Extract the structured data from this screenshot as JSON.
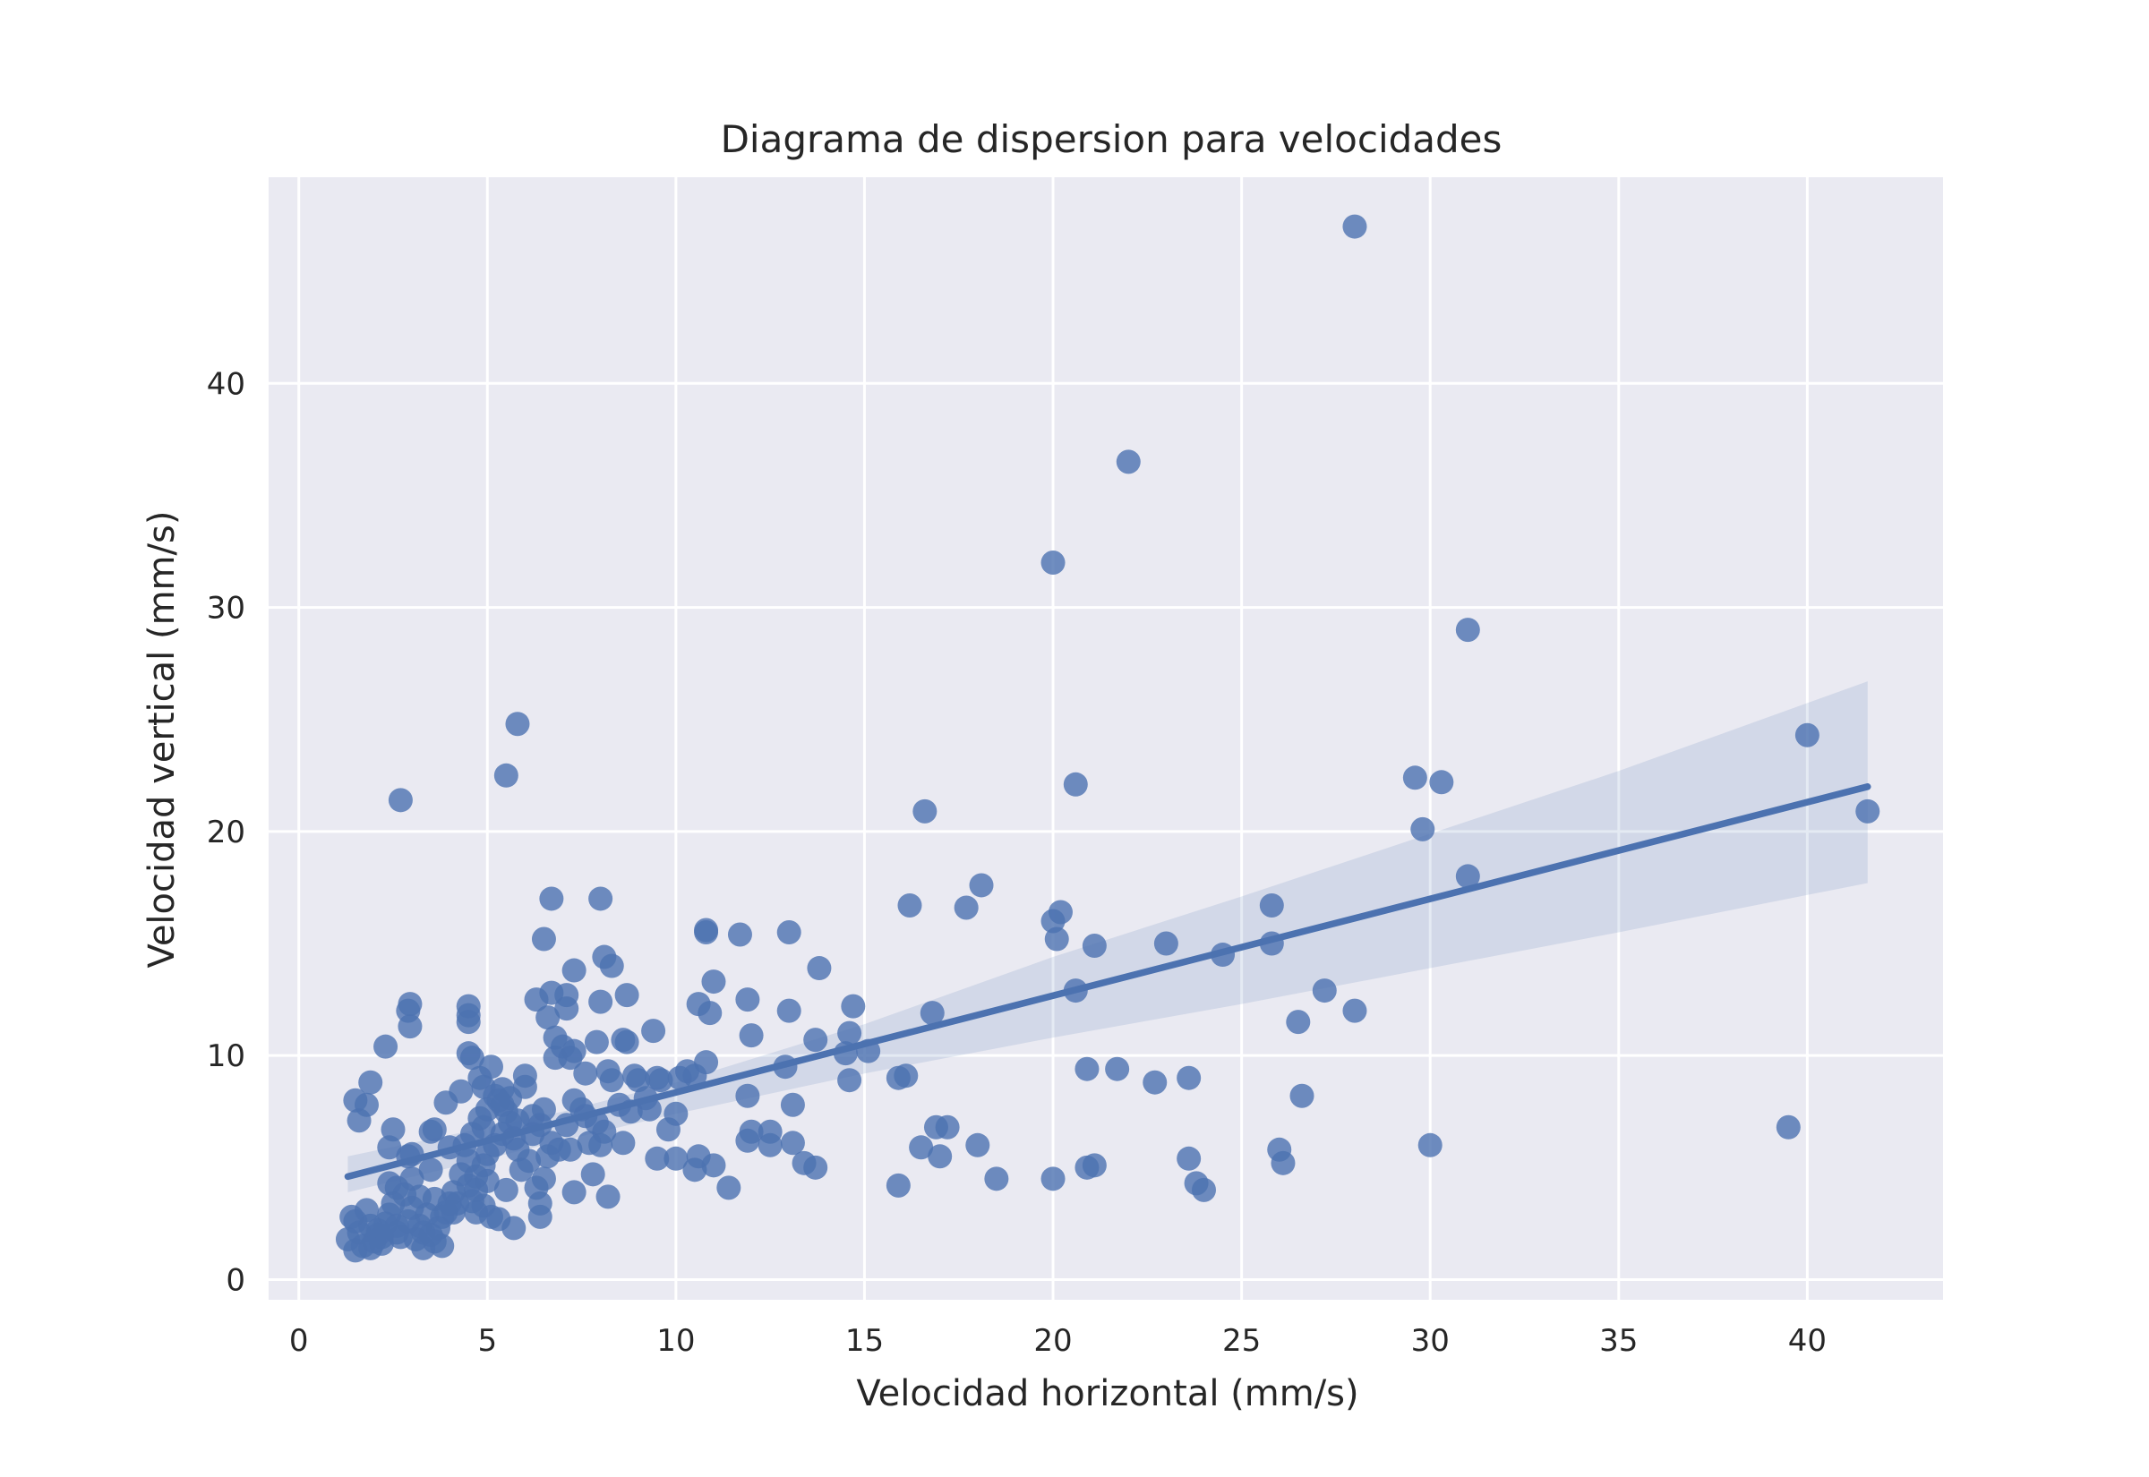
{
  "chart_data": {
    "type": "scatter",
    "title": "Diagrama de dispersion para velocidades",
    "xlabel": "Velocidad horizontal (mm/s)",
    "ylabel": "Velocidad vertical (mm/s)",
    "xlim": [
      -0.8,
      43.6
    ],
    "ylim": [
      -0.9,
      49.2
    ],
    "x_ticks": [
      0,
      5,
      10,
      15,
      20,
      25,
      30,
      35,
      40
    ],
    "y_ticks": [
      0,
      10,
      20,
      30,
      40
    ],
    "grid": true,
    "colors": {
      "background": "#eaeaf2",
      "grid": "#ffffff",
      "points": "#4c72b0",
      "line": "#4c72b0",
      "band": "#4c72b0"
    },
    "regression": {
      "x": [
        1.3,
        41.6
      ],
      "y": [
        4.6,
        22.0
      ],
      "ci_x": [
        1.3,
        7,
        10,
        15,
        20,
        25,
        30,
        35,
        41.6
      ],
      "ci_low": [
        3.9,
        6.2,
        7.4,
        9.2,
        10.8,
        12.3,
        13.9,
        15.5,
        17.7
      ],
      "ci_high": [
        5.5,
        7.5,
        8.8,
        11.4,
        14.4,
        17.1,
        19.9,
        22.7,
        26.7
      ]
    },
    "points": [
      [
        1.3,
        1.8
      ],
      [
        1.4,
        2.8
      ],
      [
        1.5,
        1.3
      ],
      [
        1.6,
        2.1
      ],
      [
        1.7,
        1.5
      ],
      [
        1.8,
        3.1
      ],
      [
        1.9,
        2.4
      ],
      [
        2.0,
        1.7
      ],
      [
        2.1,
        2.2
      ],
      [
        2.2,
        1.9
      ],
      [
        2.3,
        2.5
      ],
      [
        2.4,
        2.9
      ],
      [
        2.5,
        3.4
      ],
      [
        2.6,
        2.1
      ],
      [
        2.7,
        1.9
      ],
      [
        2.8,
        3.8
      ],
      [
        2.9,
        2.6
      ],
      [
        3.0,
        3.2
      ],
      [
        3.1,
        1.8
      ],
      [
        3.2,
        2.4
      ],
      [
        3.3,
        1.4
      ],
      [
        3.4,
        2.9
      ],
      [
        3.5,
        2.0
      ],
      [
        3.6,
        3.6
      ],
      [
        3.7,
        2.3
      ],
      [
        3.8,
        1.5
      ],
      [
        3.9,
        3.0
      ],
      [
        4.0,
        3.4
      ],
      [
        4.1,
        3.9
      ],
      [
        2.4,
        4.3
      ],
      [
        2.6,
        4.1
      ],
      [
        3.0,
        4.5
      ],
      [
        1.6,
        7.1
      ],
      [
        1.5,
        8.0
      ],
      [
        1.8,
        7.8
      ],
      [
        1.9,
        8.8
      ],
      [
        2.3,
        10.4
      ],
      [
        2.4,
        5.9
      ],
      [
        2.5,
        6.7
      ],
      [
        2.9,
        5.5
      ],
      [
        3.0,
        5.6
      ],
      [
        3.5,
        6.6
      ],
      [
        3.6,
        6.7
      ],
      [
        3.5,
        4.9
      ],
      [
        3.9,
        7.9
      ],
      [
        4.3,
        8.4
      ],
      [
        4.0,
        5.9
      ],
      [
        2.7,
        21.4
      ],
      [
        2.95,
        12.3
      ],
      [
        2.9,
        12.0
      ],
      [
        2.95,
        11.3
      ],
      [
        4.5,
        11.8
      ],
      [
        4.5,
        12.2
      ],
      [
        4.5,
        11.5
      ],
      [
        4.5,
        10.1
      ],
      [
        4.6,
        9.9
      ],
      [
        4.8,
        9.0
      ],
      [
        4.9,
        8.6
      ],
      [
        5.1,
        9.5
      ],
      [
        5.3,
        8.0
      ],
      [
        5.5,
        7.5
      ],
      [
        5.6,
        7.0
      ],
      [
        5.4,
        6.5
      ],
      [
        5.2,
        6.0
      ],
      [
        5.0,
        5.6
      ],
      [
        4.9,
        5.1
      ],
      [
        4.7,
        4.6
      ],
      [
        4.5,
        4.2
      ],
      [
        4.6,
        3.5
      ],
      [
        4.7,
        3.0
      ],
      [
        4.9,
        3.3
      ],
      [
        5.1,
        2.8
      ],
      [
        5.3,
        2.7
      ],
      [
        5.5,
        4.0
      ],
      [
        5.7,
        2.3
      ],
      [
        5.9,
        4.9
      ],
      [
        6.1,
        5.3
      ],
      [
        6.3,
        4.1
      ],
      [
        6.4,
        2.8
      ],
      [
        6.4,
        3.4
      ],
      [
        6.5,
        4.5
      ],
      [
        6.6,
        5.5
      ],
      [
        4.4,
        6.0
      ],
      [
        4.6,
        6.5
      ],
      [
        4.8,
        7.2
      ],
      [
        5.0,
        7.6
      ],
      [
        5.2,
        8.2
      ],
      [
        5.4,
        8.5
      ],
      [
        5.6,
        8.1
      ],
      [
        5.8,
        7.1
      ],
      [
        6.0,
        9.1
      ],
      [
        6.0,
        8.6
      ],
      [
        6.2,
        7.3
      ],
      [
        6.4,
        6.9
      ],
      [
        6.5,
        7.6
      ],
      [
        6.7,
        6.1
      ],
      [
        6.9,
        5.8
      ],
      [
        7.1,
        6.9
      ],
      [
        7.2,
        5.8
      ],
      [
        7.3,
        3.9
      ],
      [
        7.5,
        7.6
      ],
      [
        7.7,
        6.1
      ],
      [
        7.8,
        4.7
      ],
      [
        8.0,
        6.0
      ],
      [
        8.2,
        3.7
      ],
      [
        8.3,
        8.9
      ],
      [
        8.5,
        7.8
      ],
      [
        8.6,
        6.1
      ],
      [
        8.8,
        7.5
      ],
      [
        8.9,
        9.1
      ],
      [
        9.0,
        8.9
      ],
      [
        9.2,
        8.1
      ],
      [
        9.3,
        7.6
      ],
      [
        9.5,
        9.0
      ],
      [
        9.6,
        8.9
      ],
      [
        9.8,
        6.7
      ],
      [
        10.0,
        7.4
      ],
      [
        10.1,
        9.0
      ],
      [
        10.3,
        9.3
      ],
      [
        10.5,
        9.1
      ],
      [
        10.6,
        12.3
      ],
      [
        10.8,
        9.7
      ],
      [
        10.9,
        11.9
      ],
      [
        11.0,
        13.3
      ],
      [
        10.8,
        15.5
      ],
      [
        10.8,
        15.6
      ],
      [
        10.6,
        5.5
      ],
      [
        10.5,
        4.9
      ],
      [
        10.0,
        5.4
      ],
      [
        11.0,
        5.1
      ],
      [
        11.4,
        4.1
      ],
      [
        11.9,
        6.2
      ],
      [
        12.0,
        6.6
      ],
      [
        11.9,
        8.2
      ],
      [
        12.0,
        10.9
      ],
      [
        11.9,
        12.5
      ],
      [
        11.7,
        15.4
      ],
      [
        12.5,
        6.0
      ],
      [
        12.5,
        6.6
      ],
      [
        12.9,
        9.5
      ],
      [
        13.0,
        12.0
      ],
      [
        13.0,
        15.5
      ],
      [
        13.1,
        6.1
      ],
      [
        13.1,
        7.8
      ],
      [
        13.4,
        5.2
      ],
      [
        13.7,
        5.0
      ],
      [
        13.7,
        10.7
      ],
      [
        13.8,
        13.9
      ],
      [
        14.5,
        10.1
      ],
      [
        14.6,
        8.9
      ],
      [
        14.6,
        11.0
      ],
      [
        14.7,
        12.2
      ],
      [
        15.1,
        10.2
      ],
      [
        15.9,
        4.2
      ],
      [
        15.9,
        9.0
      ],
      [
        16.1,
        9.1
      ],
      [
        16.2,
        16.7
      ],
      [
        16.5,
        5.9
      ],
      [
        16.6,
        20.9
      ],
      [
        16.8,
        11.9
      ],
      [
        16.9,
        6.8
      ],
      [
        17.0,
        5.5
      ],
      [
        17.2,
        6.8
      ],
      [
        17.7,
        16.6
      ],
      [
        18.0,
        6.0
      ],
      [
        18.1,
        17.6
      ],
      [
        18.5,
        4.5
      ],
      [
        20.0,
        32.0
      ],
      [
        20.0,
        16.0
      ],
      [
        20.0,
        4.5
      ],
      [
        20.1,
        15.2
      ],
      [
        20.2,
        16.4
      ],
      [
        20.6,
        22.1
      ],
      [
        20.6,
        12.9
      ],
      [
        20.9,
        9.4
      ],
      [
        20.9,
        5.0
      ],
      [
        21.1,
        5.1
      ],
      [
        21.1,
        14.9
      ],
      [
        21.7,
        9.4
      ],
      [
        22.0,
        36.5
      ],
      [
        22.7,
        8.8
      ],
      [
        23.0,
        15.0
      ],
      [
        23.6,
        9.0
      ],
      [
        23.6,
        5.4
      ],
      [
        23.8,
        4.3
      ],
      [
        24.0,
        4.0
      ],
      [
        24.5,
        14.5
      ],
      [
        25.8,
        15.0
      ],
      [
        25.8,
        16.7
      ],
      [
        26.0,
        5.8
      ],
      [
        26.1,
        5.2
      ],
      [
        26.5,
        11.5
      ],
      [
        26.6,
        8.2
      ],
      [
        27.2,
        12.9
      ],
      [
        28.0,
        47.0
      ],
      [
        28.0,
        12.0
      ],
      [
        29.6,
        22.4
      ],
      [
        29.8,
        20.1
      ],
      [
        30.0,
        6.0
      ],
      [
        30.3,
        22.2
      ],
      [
        31.0,
        29.0
      ],
      [
        31.0,
        18.0
      ],
      [
        39.5,
        6.8
      ],
      [
        40.0,
        24.3
      ],
      [
        41.6,
        20.9
      ],
      [
        5.5,
        22.5
      ],
      [
        5.8,
        24.8
      ],
      [
        6.7,
        17.0
      ],
      [
        8.0,
        17.0
      ],
      [
        8.1,
        14.4
      ],
      [
        8.3,
        14.0
      ],
      [
        6.5,
        15.2
      ],
      [
        7.3,
        13.8
      ],
      [
        6.3,
        12.5
      ],
      [
        6.6,
        11.7
      ],
      [
        6.7,
        12.8
      ],
      [
        7.1,
        12.7
      ],
      [
        7.1,
        12.1
      ],
      [
        6.8,
        10.8
      ],
      [
        7.0,
        10.4
      ],
      [
        6.8,
        9.9
      ],
      [
        7.2,
        9.9
      ],
      [
        7.3,
        10.2
      ],
      [
        7.6,
        9.2
      ],
      [
        7.9,
        10.6
      ],
      [
        8.0,
        12.4
      ],
      [
        8.2,
        9.3
      ],
      [
        8.6,
        10.7
      ],
      [
        8.7,
        10.6
      ],
      [
        8.7,
        12.7
      ],
      [
        9.4,
        11.1
      ],
      [
        9.5,
        5.4
      ],
      [
        7.3,
        8.0
      ],
      [
        7.6,
        7.3
      ],
      [
        7.9,
        7.0
      ],
      [
        8.1,
        6.6
      ],
      [
        4.2,
        3.4
      ],
      [
        4.1,
        3.0
      ],
      [
        3.8,
        2.8
      ],
      [
        3.2,
        3.7
      ],
      [
        2.1,
        2.0
      ],
      [
        1.9,
        1.4
      ],
      [
        1.5,
        2.6
      ],
      [
        2.2,
        1.6
      ],
      [
        2.6,
        2.4
      ],
      [
        3.3,
        2.1
      ],
      [
        3.6,
        1.7
      ],
      [
        4.5,
        5.3
      ],
      [
        5.0,
        4.4
      ],
      [
        5.8,
        5.8
      ],
      [
        6.2,
        6.5
      ],
      [
        5.4,
        7.8
      ],
      [
        4.9,
        6.8
      ],
      [
        5.7,
        6.3
      ],
      [
        4.3,
        4.7
      ],
      [
        4.7,
        4.0
      ]
    ]
  }
}
